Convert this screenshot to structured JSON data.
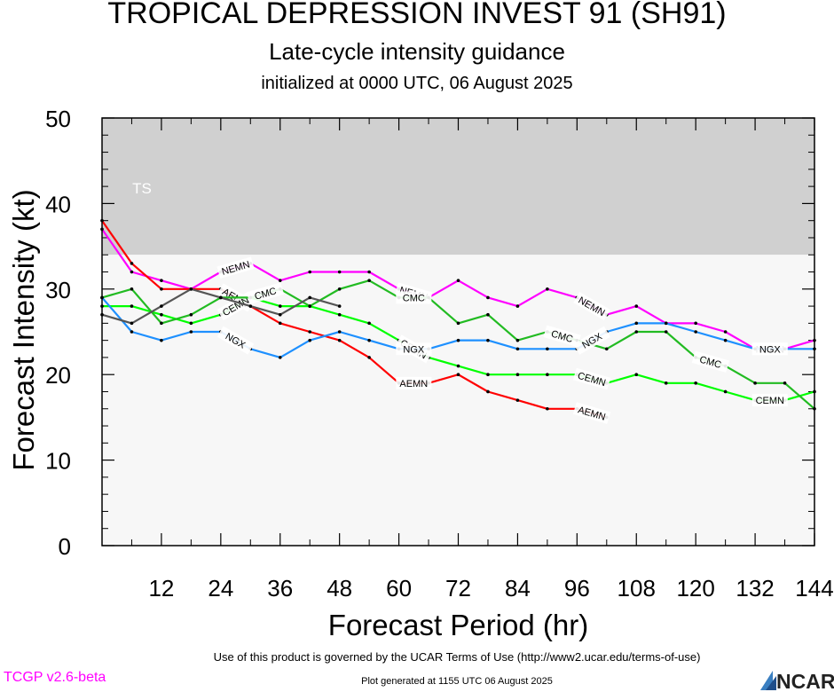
{
  "title": "TROPICAL DEPRESSION INVEST 91 (SH91)",
  "subtitle": "Late-cycle intensity guidance",
  "init_text": "initialized at 0000 UTC, 06 August 2025",
  "terms_text": "Use of this product is governed by the UCAR Terms of Use (http://www2.ucar.edu/terms-of-use)",
  "generated_text": "Plot generated at 1155 UTC   06 August 2025",
  "version_text": "TCGP v2.6-beta",
  "logo_text": "NCAR",
  "chart_data": {
    "type": "line",
    "xlabel": "Forecast Period (hr)",
    "ylabel": "Forecast Intensity (kt)",
    "xlim": [
      0,
      144
    ],
    "ylim": [
      0,
      50
    ],
    "xticks": [
      12,
      24,
      36,
      48,
      60,
      72,
      84,
      96,
      108,
      120,
      132,
      144
    ],
    "yticks": [
      0,
      10,
      20,
      30,
      40,
      50
    ],
    "bands": [
      {
        "label": "TS",
        "ymin": 34,
        "ymax": 50,
        "color": "#d0d0d0"
      },
      {
        "label": "",
        "ymin": 0,
        "ymax": 34,
        "color": "#f7f7f7"
      }
    ],
    "series": [
      {
        "name": "NEMN",
        "color": "#ff00ff",
        "x": [
          0,
          6,
          12,
          18,
          24,
          30,
          36,
          42,
          48,
          54,
          60,
          66,
          72,
          78,
          84,
          90,
          96,
          102,
          108,
          114,
          120,
          126,
          132,
          138,
          144
        ],
        "y": [
          37,
          32,
          31,
          30,
          32,
          33,
          31,
          32,
          32,
          32,
          30,
          29,
          31,
          29,
          28,
          30,
          29,
          27,
          28,
          26,
          26,
          25,
          23,
          23,
          24
        ],
        "labels_at": [
          24,
          60,
          96,
          132
        ]
      },
      {
        "name": "AEMN",
        "color": "#ff0000",
        "x": [
          0,
          6,
          12,
          18,
          24,
          30,
          36,
          42,
          48,
          54,
          60,
          66,
          72,
          78,
          84,
          90,
          96,
          102
        ],
        "y": [
          38,
          33,
          30,
          30,
          30,
          28,
          26,
          25,
          24,
          22,
          19,
          19,
          20,
          18,
          17,
          16,
          16,
          15
        ],
        "labels_at": [
          24,
          60,
          96
        ]
      },
      {
        "name": "CEMN",
        "color": "#00ff00",
        "x": [
          0,
          6,
          12,
          18,
          24,
          30,
          36,
          42,
          48,
          54,
          60,
          66,
          72,
          78,
          84,
          90,
          96,
          102,
          108,
          114,
          120,
          126,
          132,
          138,
          144
        ],
        "y": [
          28,
          28,
          27,
          26,
          27,
          29,
          28,
          28,
          27,
          26,
          24,
          22,
          21,
          20,
          20,
          20,
          20,
          19,
          20,
          19,
          19,
          18,
          17,
          17,
          18
        ],
        "labels_at": [
          24,
          60,
          96,
          132
        ]
      },
      {
        "name": "CMC",
        "color": "#22bb22",
        "x": [
          0,
          6,
          12,
          18,
          24,
          30,
          36,
          42,
          48,
          54,
          60,
          66,
          72,
          78,
          84,
          90,
          96,
          102,
          108,
          114,
          120,
          126,
          132,
          138,
          144
        ],
        "y": [
          29,
          30,
          26,
          27,
          29,
          29,
          30,
          28,
          30,
          31,
          29,
          29,
          26,
          27,
          24,
          25,
          24,
          23,
          25,
          25,
          22,
          21,
          19,
          19,
          16
        ],
        "labels_at": [
          30,
          60,
          90,
          120
        ]
      },
      {
        "name": "NGX",
        "color": "#1e90ff",
        "x": [
          0,
          6,
          12,
          18,
          24,
          30,
          36,
          42,
          48,
          54,
          60,
          66,
          72,
          78,
          84,
          90,
          96,
          102,
          108,
          114,
          120,
          126,
          132,
          138,
          144
        ],
        "y": [
          29,
          25,
          24,
          25,
          25,
          23,
          22,
          24,
          25,
          24,
          23,
          23,
          24,
          24,
          23,
          23,
          23,
          25,
          26,
          26,
          25,
          24,
          23,
          23,
          23
        ],
        "labels_at": [
          24,
          60,
          96,
          132
        ]
      },
      {
        "name": "",
        "color": "#555555",
        "x": [
          0,
          6,
          12,
          18,
          24,
          30,
          36,
          42,
          48
        ],
        "y": [
          27,
          26,
          28,
          30,
          29,
          28,
          27,
          29,
          28
        ],
        "labels_at": []
      }
    ]
  }
}
